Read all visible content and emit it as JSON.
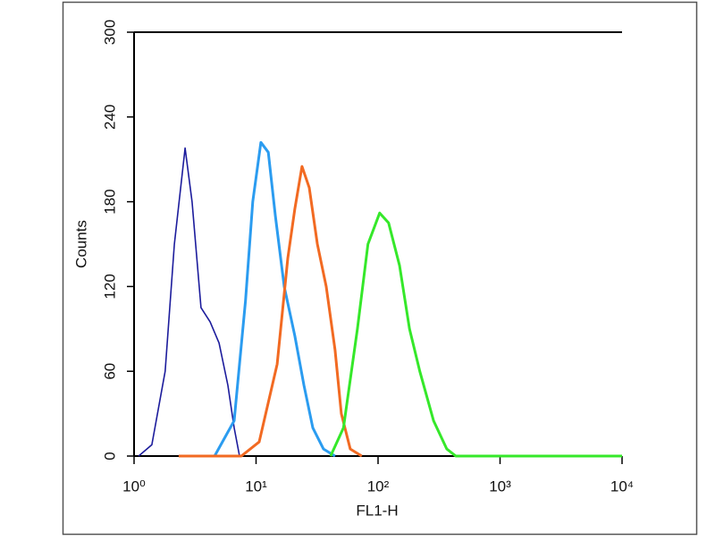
{
  "chart_data": {
    "type": "histogram-overlay",
    "xlabel": "FL1-H",
    "ylabel": "Counts",
    "xscale": "log",
    "xlim": [
      1,
      10000
    ],
    "xticks": [
      {
        "value": 1,
        "label": "10⁰"
      },
      {
        "value": 10,
        "label": "10¹"
      },
      {
        "value": 100,
        "label": "10²"
      },
      {
        "value": 1000,
        "label": "10³"
      },
      {
        "value": 10000,
        "label": "10⁴"
      }
    ],
    "ylim": [
      0,
      300
    ],
    "yticks": [
      0,
      60,
      120,
      180,
      240,
      300
    ],
    "series": [
      {
        "color": "#1c1c9c",
        "x": [
          1.09,
          1.4,
          1.8,
          2.14,
          2.62,
          2.99,
          3.54,
          4.2,
          4.97,
          5.88,
          6.62,
          7.32
        ],
        "values": [
          0,
          8,
          60,
          150,
          218,
          180,
          105,
          95,
          80,
          50,
          20,
          0
        ]
      },
      {
        "color": "#2b9cf0",
        "x": [
          4.57,
          6.62,
          8.2,
          9.4,
          10.96,
          12.6,
          14.4,
          17.0,
          20.8,
          24.7,
          29.2,
          35.7,
          44.4
        ],
        "values": [
          0,
          25,
          110,
          180,
          222,
          215,
          170,
          120,
          85,
          50,
          20,
          5,
          0
        ]
      },
      {
        "color": "#f26a22",
        "x": [
          2.32,
          7.57,
          10.6,
          14.9,
          18.2,
          20.8,
          23.8,
          27.3,
          31.8,
          37.6,
          44.4,
          50.0,
          59.2,
          73.6
        ],
        "values": [
          0,
          0,
          10,
          65,
          140,
          175,
          205,
          190,
          150,
          120,
          75,
          30,
          5,
          0
        ]
      },
      {
        "color": "#35e82a",
        "x": [
          40.8,
          52.1,
          67.7,
          82.6,
          103,
          122,
          150,
          181,
          220,
          285,
          366,
          434,
          10000
        ],
        "values": [
          0,
          20,
          90,
          150,
          172,
          165,
          135,
          90,
          60,
          25,
          5,
          0,
          0
        ]
      }
    ]
  }
}
